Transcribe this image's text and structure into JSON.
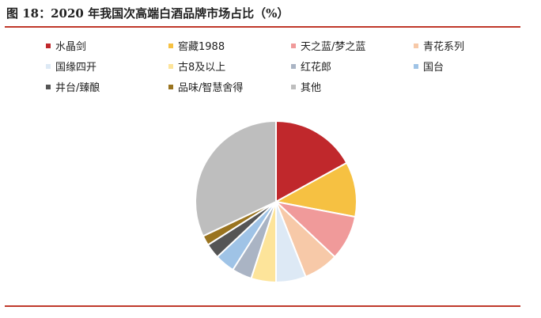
{
  "figure": {
    "title": "图 18：2020 年我国次高端白酒品牌市场占比（%）"
  },
  "chart_data": {
    "type": "pie",
    "title": "图 18：2020 年我国次高端白酒品牌市场占比（%）",
    "legend_position": "top",
    "slices": [
      {
        "label": "水晶剑",
        "value": 17,
        "color": "#c0282c"
      },
      {
        "label": "窖藏1988",
        "value": 11,
        "color": "#f6c142"
      },
      {
        "label": "天之蓝/梦之蓝",
        "value": 9,
        "color": "#f09a9a"
      },
      {
        "label": "青花系列",
        "value": 7,
        "color": "#f7c9a8"
      },
      {
        "label": "国缘四开",
        "value": 6,
        "color": "#dde9f5"
      },
      {
        "label": "古8及以上",
        "value": 5,
        "color": "#fde49a"
      },
      {
        "label": "红花郎",
        "value": 4,
        "color": "#aab4c4"
      },
      {
        "label": "国台",
        "value": 4,
        "color": "#9fc3e6"
      },
      {
        "label": "井台/臻酿",
        "value": 3,
        "color": "#555555"
      },
      {
        "label": "品味/智慧舍得",
        "value": 2,
        "color": "#9a7420"
      },
      {
        "label": "其他",
        "value": 32,
        "color": "#bebebe"
      }
    ]
  }
}
